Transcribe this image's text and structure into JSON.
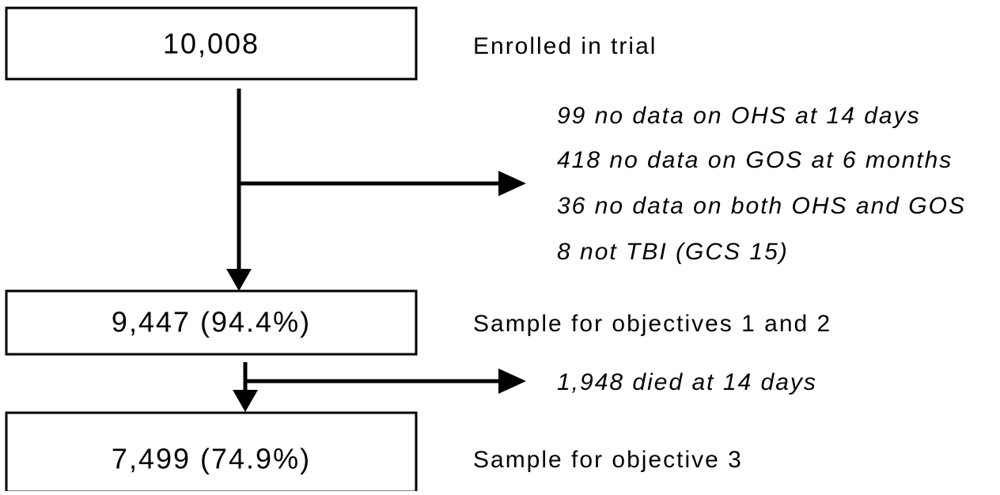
{
  "nodes": [
    {
      "label": "10,008",
      "description": "Enrolled in trial"
    },
    {
      "label": "9,447 (94.4%)",
      "description": "Sample for objectives 1 and 2"
    },
    {
      "label": "7,499 (74.9%)",
      "description": "Sample for objective 3"
    }
  ],
  "exclusions": [
    {
      "lines": [
        "99 no data on OHS at 14 days",
        "418 no data on GOS at 6 months",
        "36 no data on both OHS and GOS",
        "8 not TBI (GCS 15)"
      ]
    },
    {
      "lines": [
        "1,948  died at 14 days"
      ]
    }
  ]
}
